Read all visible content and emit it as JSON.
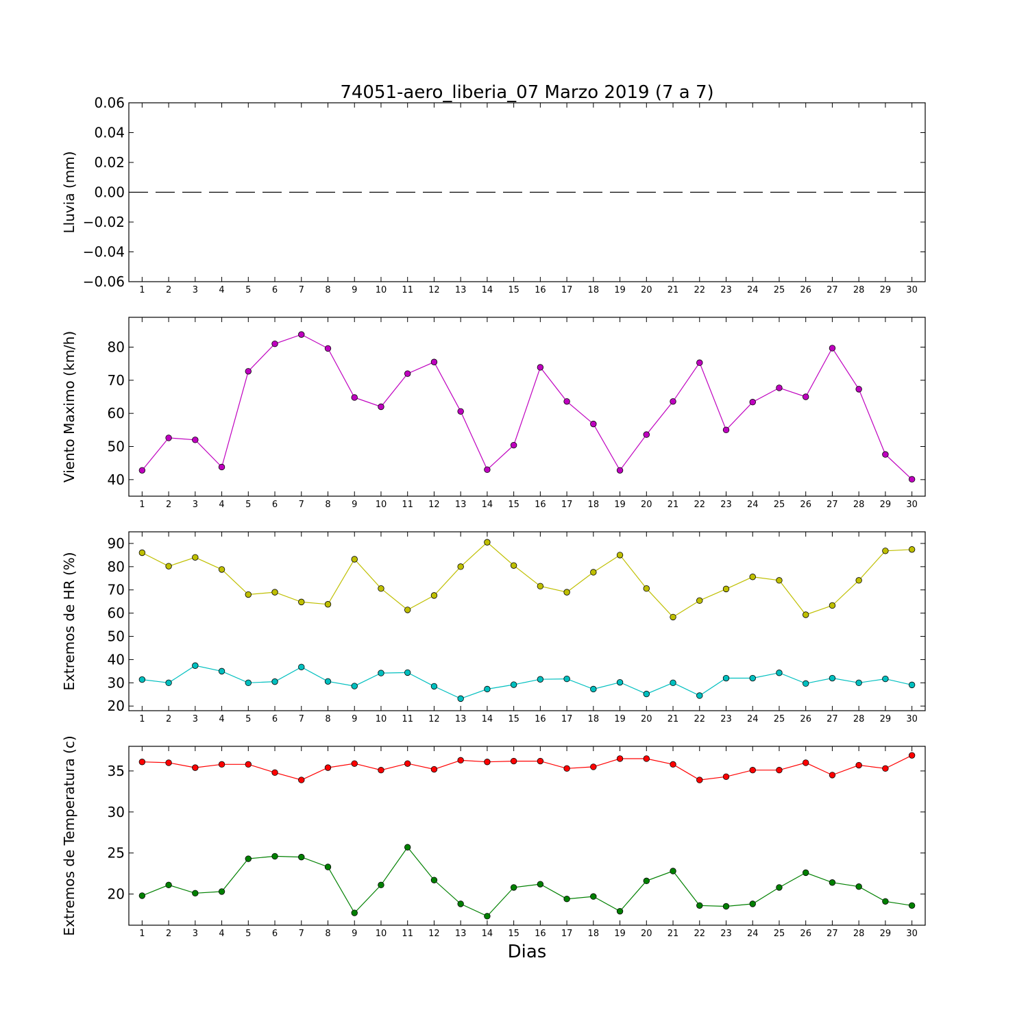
{
  "figure": {
    "title": "74051-aero_liberia_07 Marzo 2019  (7 a 7)",
    "xlabel": "Dias"
  },
  "chart_data": [
    {
      "type": "line",
      "ylabel": "Lluvia (mm)",
      "x": [
        1,
        2,
        3,
        4,
        5,
        6,
        7,
        8,
        9,
        10,
        11,
        12,
        13,
        14,
        15,
        16,
        17,
        18,
        19,
        20,
        21,
        22,
        23,
        24,
        25,
        26,
        27,
        28,
        29,
        30
      ],
      "xlim": [
        0.5,
        30.5
      ],
      "ylim": [
        -0.06,
        0.06
      ],
      "yticks": [
        -0.06,
        -0.04,
        -0.02,
        0.0,
        0.02,
        0.04,
        0.06
      ],
      "ytick_labels": [
        "−0.06",
        "−0.04",
        "−0.02",
        "0.00",
        "0.02",
        "0.04",
        "0.06"
      ],
      "grid": false,
      "series": [
        {
          "color": "#000000",
          "dashed": true,
          "markers": false,
          "values": [
            0,
            0,
            0,
            0,
            0,
            0,
            0,
            0,
            0,
            0,
            0,
            0,
            0,
            0,
            0,
            0,
            0,
            0,
            0,
            0,
            0,
            0,
            0,
            0,
            0,
            0,
            0,
            0,
            0,
            0
          ]
        }
      ]
    },
    {
      "type": "line",
      "ylabel": "Viento Maximo (km/h)",
      "x": [
        1,
        2,
        3,
        4,
        5,
        6,
        7,
        8,
        9,
        10,
        11,
        12,
        13,
        14,
        15,
        16,
        17,
        18,
        19,
        20,
        21,
        22,
        23,
        24,
        25,
        26,
        27,
        28,
        29,
        30
      ],
      "xlim": [
        0.5,
        30.5
      ],
      "ylim": [
        35,
        89
      ],
      "yticks": [
        40,
        50,
        60,
        70,
        80
      ],
      "ytick_labels": [
        "40",
        "50",
        "60",
        "70",
        "80"
      ],
      "grid": false,
      "series": [
        {
          "color": "#bf00bf",
          "dashed": false,
          "markers": true,
          "values": [
            42.8,
            52.6,
            52.0,
            43.8,
            72.7,
            81.0,
            83.8,
            79.6,
            64.8,
            62.0,
            72.0,
            75.5,
            60.6,
            43.0,
            50.4,
            73.9,
            63.6,
            56.8,
            42.8,
            53.6,
            63.6,
            75.3,
            55.0,
            63.4,
            67.7,
            65.0,
            79.7,
            67.3,
            47.6,
            40.1
          ]
        }
      ]
    },
    {
      "type": "line",
      "ylabel": "Extremos de HR (%)",
      "x": [
        1,
        2,
        3,
        4,
        5,
        6,
        7,
        8,
        9,
        10,
        11,
        12,
        13,
        14,
        15,
        16,
        17,
        18,
        19,
        20,
        21,
        22,
        23,
        24,
        25,
        26,
        27,
        28,
        29,
        30
      ],
      "xlim": [
        0.5,
        30.5
      ],
      "ylim": [
        18,
        95
      ],
      "yticks": [
        20,
        30,
        40,
        50,
        60,
        70,
        80,
        90
      ],
      "ytick_labels": [
        "20",
        "30",
        "40",
        "50",
        "60",
        "70",
        "80",
        "90"
      ],
      "grid": false,
      "series": [
        {
          "color": "#bfbf00",
          "dashed": false,
          "markers": true,
          "values": [
            86.0,
            80.2,
            84.0,
            78.8,
            68.0,
            69.0,
            64.8,
            63.8,
            83.2,
            70.6,
            61.4,
            67.6,
            80.0,
            90.5,
            80.5,
            71.6,
            69.0,
            77.6,
            85.0,
            70.6,
            58.3,
            65.4,
            70.4,
            75.6,
            74.1,
            59.3,
            63.3,
            74.1,
            86.8,
            87.4
          ]
        },
        {
          "color": "#00bfbf",
          "dashed": false,
          "markers": true,
          "values": [
            31.4,
            30.0,
            37.4,
            35.0,
            30.0,
            30.5,
            36.8,
            30.6,
            28.6,
            34.2,
            34.4,
            28.5,
            23.2,
            27.3,
            29.2,
            31.5,
            31.7,
            27.3,
            30.2,
            25.2,
            30.0,
            24.5,
            32.0,
            32.0,
            34.3,
            29.7,
            32.0,
            30.0,
            31.7,
            29.1
          ]
        }
      ]
    },
    {
      "type": "line",
      "ylabel": "Extremos de Temperatura (c)",
      "x": [
        1,
        2,
        3,
        4,
        5,
        6,
        7,
        8,
        9,
        10,
        11,
        12,
        13,
        14,
        15,
        16,
        17,
        18,
        19,
        20,
        21,
        22,
        23,
        24,
        25,
        26,
        27,
        28,
        29,
        30
      ],
      "xlim": [
        0.5,
        30.5
      ],
      "ylim": [
        16.2,
        38
      ],
      "yticks": [
        20,
        25,
        30,
        35
      ],
      "ytick_labels": [
        "20",
        "25",
        "30",
        "35"
      ],
      "grid": false,
      "series": [
        {
          "color": "#ff0000",
          "dashed": false,
          "markers": true,
          "values": [
            36.1,
            36.0,
            35.4,
            35.8,
            35.8,
            34.8,
            33.9,
            35.4,
            35.9,
            35.1,
            35.9,
            35.2,
            36.3,
            36.1,
            36.2,
            36.2,
            35.3,
            35.5,
            36.5,
            36.5,
            35.8,
            33.9,
            34.3,
            35.1,
            35.1,
            36.0,
            34.5,
            35.7,
            35.3,
            36.9
          ]
        },
        {
          "color": "#008000",
          "dashed": false,
          "markers": true,
          "values": [
            19.8,
            21.1,
            20.1,
            20.3,
            24.3,
            24.6,
            24.5,
            23.3,
            17.7,
            21.1,
            25.7,
            21.7,
            18.8,
            17.3,
            20.8,
            21.2,
            19.4,
            19.7,
            17.9,
            21.6,
            22.8,
            18.6,
            18.5,
            18.8,
            20.8,
            22.6,
            21.4,
            20.9,
            19.1,
            18.6
          ]
        }
      ]
    }
  ]
}
